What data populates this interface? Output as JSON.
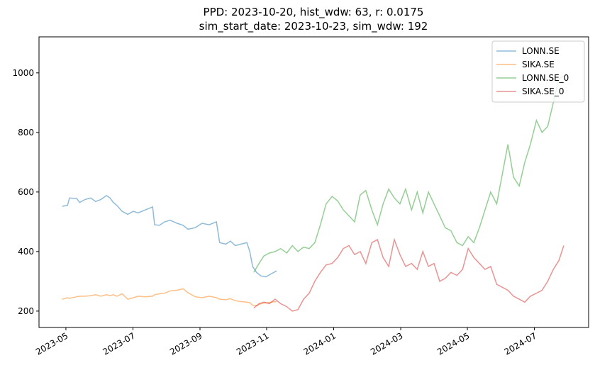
{
  "chart_data": {
    "type": "line",
    "title": "PPD: 2023-10-20, hist_wdw: 63, r: 0.0175",
    "subtitle": "sim_start_date: 2023-10-23, sim_wdw: 192",
    "xlim": [
      2023.266,
      2024.635
    ],
    "ylim": [
      145,
      1121
    ],
    "xticks": [
      {
        "value": 2023.333,
        "label": "2023-05"
      },
      {
        "value": 2023.5,
        "label": "2023-07"
      },
      {
        "value": 2023.667,
        "label": "2023-09"
      },
      {
        "value": 2023.833,
        "label": "2023-11"
      },
      {
        "value": 2024.0,
        "label": "2024-01"
      },
      {
        "value": 2024.167,
        "label": "2024-03"
      },
      {
        "value": 2024.333,
        "label": "2024-05"
      },
      {
        "value": 2024.5,
        "label": "2024-07"
      }
    ],
    "yticks": [
      200,
      400,
      600,
      800,
      1000
    ],
    "grid": false,
    "legend": "upper right",
    "line_alpha": 0.5,
    "series": [
      {
        "name": "LONN.SE",
        "color": "#1f77b4",
        "x": [
          2023.324,
          2023.337,
          2023.342,
          2023.36,
          2023.367,
          2023.381,
          2023.395,
          2023.407,
          2023.42,
          2023.434,
          2023.443,
          2023.451,
          2023.46,
          2023.473,
          2023.487,
          2023.501,
          2023.513,
          2023.531,
          2023.549,
          2023.554,
          2023.566,
          2023.579,
          2023.593,
          2023.61,
          2023.625,
          2023.637,
          2023.655,
          2023.672,
          2023.69,
          2023.708,
          2023.716,
          2023.731,
          2023.743,
          2023.755,
          2023.769,
          2023.784,
          2023.791,
          2023.798,
          2023.808,
          2023.819,
          2023.831,
          2023.844,
          2023.858
        ],
        "values": [
          552,
          555,
          580,
          578,
          565,
          575,
          580,
          568,
          575,
          588,
          580,
          565,
          555,
          535,
          525,
          535,
          530,
          540,
          550,
          490,
          488,
          500,
          505,
          495,
          488,
          475,
          480,
          495,
          490,
          500,
          430,
          425,
          435,
          420,
          425,
          430,
          400,
          350,
          330,
          318,
          315,
          325,
          335
        ]
      },
      {
        "name": "SIKA.SE",
        "color": "#ff7f0e",
        "x": [
          2023.324,
          2023.337,
          2023.342,
          2023.36,
          2023.367,
          2023.381,
          2023.395,
          2023.407,
          2023.42,
          2023.434,
          2023.443,
          2023.451,
          2023.46,
          2023.473,
          2023.487,
          2023.501,
          2023.513,
          2023.531,
          2023.549,
          2023.554,
          2023.566,
          2023.579,
          2023.593,
          2023.61,
          2023.625,
          2023.637,
          2023.655,
          2023.672,
          2023.69,
          2023.708,
          2023.716,
          2023.731,
          2023.743,
          2023.755,
          2023.769,
          2023.784,
          2023.791,
          2023.798,
          2023.808,
          2023.819,
          2023.831,
          2023.844,
          2023.858
        ],
        "values": [
          240,
          245,
          243,
          248,
          250,
          250,
          252,
          255,
          250,
          255,
          252,
          255,
          250,
          258,
          240,
          245,
          250,
          248,
          250,
          255,
          258,
          260,
          268,
          270,
          275,
          262,
          248,
          245,
          250,
          245,
          240,
          238,
          242,
          235,
          232,
          230,
          228,
          220,
          218,
          225,
          228,
          230,
          232
        ]
      },
      {
        "name": "LONN.SE_0",
        "color": "#2ca02c",
        "x": [
          2023.801,
          2023.814,
          2023.826,
          2023.84,
          2023.854,
          2023.868,
          2023.883,
          2023.897,
          2023.911,
          2023.925,
          2023.939,
          2023.953,
          2023.967,
          2023.981,
          2023.996,
          2024.01,
          2024.024,
          2024.038,
          2024.052,
          2024.066,
          2024.08,
          2024.095,
          2024.109,
          2024.123,
          2024.137,
          2024.151,
          2024.165,
          2024.179,
          2024.194,
          2024.208,
          2024.222,
          2024.236,
          2024.25,
          2024.264,
          2024.278,
          2024.292,
          2024.307,
          2024.321,
          2024.335,
          2024.349,
          2024.363,
          2024.377,
          2024.391,
          2024.406,
          2024.42,
          2024.434,
          2024.448,
          2024.462,
          2024.476,
          2024.49,
          2024.505,
          2024.519,
          2024.533,
          2024.547,
          2024.561,
          2024.573
        ],
        "values": [
          330,
          360,
          385,
          395,
          400,
          410,
          395,
          420,
          400,
          415,
          410,
          430,
          490,
          560,
          585,
          570,
          540,
          520,
          500,
          590,
          605,
          540,
          490,
          560,
          610,
          580,
          560,
          610,
          540,
          600,
          530,
          600,
          560,
          520,
          480,
          470,
          430,
          420,
          450,
          430,
          480,
          540,
          600,
          560,
          660,
          760,
          650,
          620,
          700,
          760,
          840,
          800,
          820,
          900,
          980,
          990
        ]
      },
      {
        "name": "SIKA.SE_0",
        "color": "#d62728",
        "x": [
          2023.801,
          2023.814,
          2023.826,
          2023.84,
          2023.854,
          2023.868,
          2023.883,
          2023.897,
          2023.911,
          2023.925,
          2023.939,
          2023.953,
          2023.967,
          2023.981,
          2023.996,
          2024.01,
          2024.024,
          2024.038,
          2024.052,
          2024.066,
          2024.08,
          2024.095,
          2024.109,
          2024.123,
          2024.137,
          2024.151,
          2024.165,
          2024.179,
          2024.194,
          2024.208,
          2024.222,
          2024.236,
          2024.25,
          2024.264,
          2024.278,
          2024.292,
          2024.307,
          2024.321,
          2024.335,
          2024.349,
          2024.363,
          2024.377,
          2024.391,
          2024.406,
          2024.42,
          2024.434,
          2024.448,
          2024.462,
          2024.476,
          2024.49,
          2024.505,
          2024.519,
          2024.533,
          2024.547,
          2024.561,
          2024.573
        ],
        "values": [
          210,
          225,
          230,
          225,
          240,
          225,
          215,
          200,
          205,
          240,
          260,
          300,
          330,
          355,
          360,
          380,
          410,
          420,
          390,
          400,
          360,
          430,
          440,
          380,
          350,
          440,
          390,
          350,
          360,
          340,
          400,
          350,
          360,
          300,
          310,
          330,
          320,
          340,
          410,
          380,
          360,
          340,
          350,
          290,
          280,
          270,
          250,
          240,
          230,
          250,
          260,
          270,
          300,
          340,
          370,
          420
        ]
      }
    ]
  }
}
